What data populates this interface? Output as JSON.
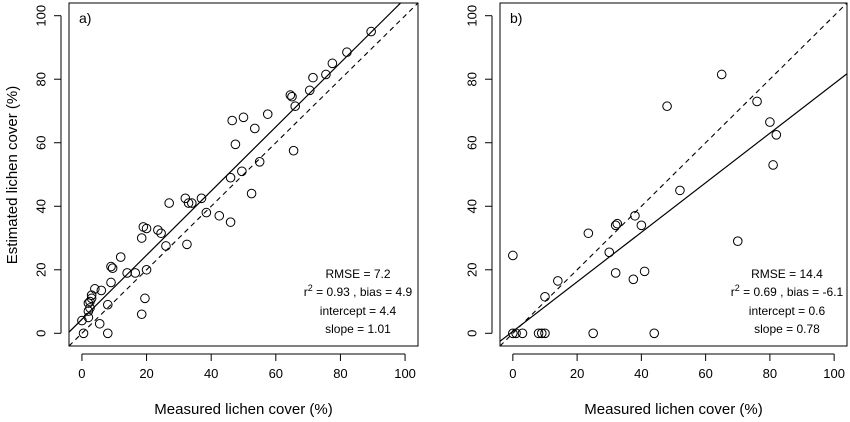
{
  "figure": {
    "ylabel": "Estimated lichen cover (%)"
  },
  "chart_data": [
    {
      "type": "scatter",
      "panel_label": "a)",
      "xlabel": "Measured lichen cover (%)",
      "ylabel": "Estimated lichen cover (%)",
      "xlim": [
        -4,
        104
      ],
      "ylim": [
        -4,
        104
      ],
      "xticks": [
        0,
        20,
        40,
        60,
        80,
        100
      ],
      "yticks": [
        0,
        20,
        40,
        60,
        80,
        100
      ],
      "grid": false,
      "points": [
        [
          0.5,
          0
        ],
        [
          0,
          4
        ],
        [
          2,
          5
        ],
        [
          2,
          7
        ],
        [
          2.5,
          8
        ],
        [
          2.5,
          10
        ],
        [
          3,
          11
        ],
        [
          2,
          9.5
        ],
        [
          3,
          12
        ],
        [
          4,
          14
        ],
        [
          5.5,
          3
        ],
        [
          6,
          13.5
        ],
        [
          8,
          0
        ],
        [
          8,
          9
        ],
        [
          9,
          16
        ],
        [
          9,
          21
        ],
        [
          9.5,
          20.5
        ],
        [
          12,
          24
        ],
        [
          14,
          19
        ],
        [
          16.5,
          19
        ],
        [
          18.5,
          6
        ],
        [
          19.5,
          11
        ],
        [
          20,
          20
        ],
        [
          18.5,
          30
        ],
        [
          19,
          33.5
        ],
        [
          20,
          33
        ],
        [
          23.5,
          32.5
        ],
        [
          24.5,
          31.5
        ],
        [
          26,
          27.5
        ],
        [
          27,
          41
        ],
        [
          32,
          42.5
        ],
        [
          33,
          41
        ],
        [
          34,
          41
        ],
        [
          32.5,
          28
        ],
        [
          37,
          42.5
        ],
        [
          38.5,
          38
        ],
        [
          42.5,
          37
        ],
        [
          46,
          35
        ],
        [
          46,
          49
        ],
        [
          46.5,
          67
        ],
        [
          47.5,
          59.5
        ],
        [
          49.5,
          51
        ],
        [
          50,
          68
        ],
        [
          52.5,
          44
        ],
        [
          53.5,
          64.5
        ],
        [
          55,
          54
        ],
        [
          57.5,
          69
        ],
        [
          64.5,
          75
        ],
        [
          65,
          74.5
        ],
        [
          65.5,
          57.5
        ],
        [
          66,
          71.5
        ],
        [
          70.5,
          76.5
        ],
        [
          71.5,
          80.5
        ],
        [
          75.5,
          81.5
        ],
        [
          77.5,
          85
        ],
        [
          82,
          88.5
        ],
        [
          89.5,
          95
        ]
      ],
      "fit_line": {
        "intercept": 4.4,
        "slope": 1.01
      },
      "identity_line": {
        "intercept": 0,
        "slope": 1
      },
      "stats": {
        "rmse": "RMSE = 7.2",
        "r2_prefix": "r",
        "r2_sup": "2",
        "r2_rest": " = 0.93 , bias = 4.9",
        "intercept": "intercept = 4.4",
        "slope": "slope = 1.01"
      }
    },
    {
      "type": "scatter",
      "panel_label": "b)",
      "xlabel": "Measured lichen cover (%)",
      "ylabel": "",
      "xlim": [
        -4,
        104
      ],
      "ylim": [
        -4,
        104
      ],
      "xticks": [
        0,
        20,
        40,
        60,
        80,
        100
      ],
      "yticks": [
        0,
        20,
        40,
        60,
        80,
        100
      ],
      "grid": false,
      "points": [
        [
          0,
          24.5
        ],
        [
          0,
          0
        ],
        [
          1,
          0
        ],
        [
          3,
          0
        ],
        [
          8,
          0
        ],
        [
          9,
          0
        ],
        [
          10,
          0
        ],
        [
          10,
          11.5
        ],
        [
          14,
          16.5
        ],
        [
          23.5,
          31.5
        ],
        [
          25,
          0
        ],
        [
          30,
          25.5
        ],
        [
          32,
          34
        ],
        [
          32.5,
          34.5
        ],
        [
          32,
          19
        ],
        [
          37.5,
          17
        ],
        [
          38,
          37
        ],
        [
          40,
          34
        ],
        [
          41,
          19.5
        ],
        [
          44,
          0
        ],
        [
          48,
          71.5
        ],
        [
          52,
          45
        ],
        [
          65,
          81.5
        ],
        [
          70,
          29
        ],
        [
          76,
          73
        ],
        [
          80,
          66.5
        ],
        [
          81,
          53
        ],
        [
          82,
          62.5
        ]
      ],
      "fit_line": {
        "intercept": 0.6,
        "slope": 0.78
      },
      "identity_line": {
        "intercept": 0,
        "slope": 1
      },
      "stats": {
        "rmse": "RMSE = 14.4",
        "r2_prefix": "r",
        "r2_sup": "2",
        "r2_rest": " = 0.69 , bias = -6.1",
        "intercept": "intercept = 0.6",
        "slope": "slope = 0.78"
      }
    }
  ]
}
